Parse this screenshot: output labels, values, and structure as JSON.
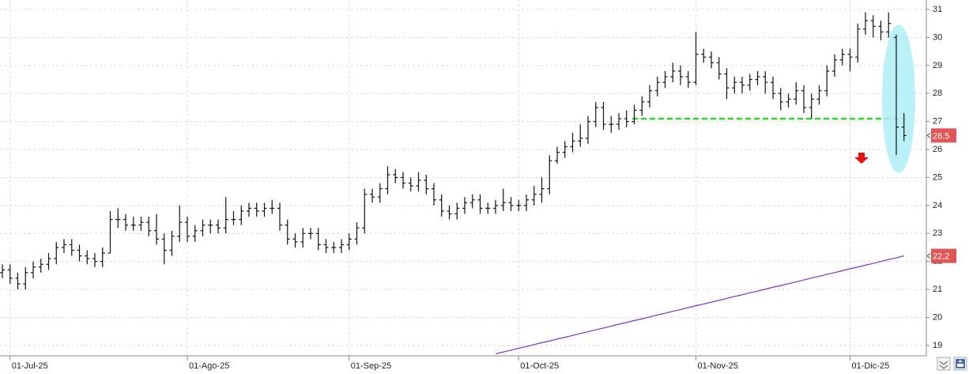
{
  "chart_data": {
    "type": "ohlc",
    "categories": [
      null,
      "01-Jul-25",
      null,
      null,
      null,
      null,
      null,
      null,
      null,
      null,
      null,
      null,
      null,
      null,
      null,
      null,
      null,
      null,
      null,
      null,
      null,
      null,
      null,
      null,
      "01-Ago-25",
      null,
      null,
      null,
      null,
      null,
      null,
      null,
      null,
      null,
      null,
      null,
      null,
      null,
      null,
      null,
      null,
      null,
      null,
      null,
      null,
      "01-Sep-25",
      null,
      null,
      null,
      null,
      null,
      null,
      null,
      null,
      null,
      null,
      null,
      null,
      null,
      null,
      null,
      null,
      null,
      null,
      null,
      null,
      null,
      "01-Oct-25",
      null,
      null,
      null,
      null,
      null,
      null,
      null,
      null,
      null,
      null,
      null,
      null,
      null,
      null,
      null,
      null,
      null,
      null,
      null,
      null,
      null,
      null,
      "01-Nov-25",
      null,
      null,
      null,
      null,
      null,
      null,
      null,
      null,
      null,
      null,
      null,
      null,
      null,
      null,
      null,
      null,
      null,
      null,
      null,
      "01-Dic-25",
      null,
      null,
      null,
      null,
      null,
      null,
      null
    ],
    "open": [
      21.6,
      21.7,
      21.4,
      21.2,
      21.6,
      21.8,
      21.9,
      22.1,
      22.5,
      22.6,
      22.4,
      22.2,
      22.1,
      22.0,
      22.3,
      23.5,
      23.5,
      23.3,
      23.3,
      23.4,
      23.1,
      22.8,
      22.4,
      22.9,
      23.4,
      22.9,
      23.1,
      23.3,
      23.3,
      23.2,
      23.5,
      23.5,
      23.8,
      23.9,
      23.8,
      23.9,
      23.9,
      23.3,
      22.8,
      22.7,
      23.0,
      23.0,
      22.6,
      22.5,
      22.5,
      22.6,
      22.8,
      23.2,
      24.4,
      24.3,
      24.6,
      25.1,
      25.0,
      24.8,
      24.7,
      24.9,
      24.6,
      24.2,
      23.8,
      23.7,
      23.9,
      24.1,
      24.2,
      23.9,
      23.9,
      24.0,
      24.1,
      24.0,
      24.0,
      24.2,
      24.4,
      24.6,
      25.6,
      25.9,
      26.1,
      26.3,
      26.4,
      27.0,
      27.5,
      26.9,
      26.9,
      27.1,
      27.0,
      27.4,
      27.7,
      28.1,
      28.4,
      28.6,
      28.8,
      28.6,
      28.4,
      29.4,
      29.3,
      29.1,
      28.7,
      28.2,
      28.4,
      28.3,
      28.5,
      28.6,
      28.4,
      28.0,
      27.7,
      27.8,
      28.1,
      27.5,
      27.8,
      28.1,
      28.8,
      29.2,
      29.4,
      29.3,
      30.3,
      30.6,
      30.4,
      30.2,
      30.0,
      26.8
    ],
    "high": [
      21.9,
      21.9,
      21.6,
      21.8,
      22.0,
      22.1,
      22.3,
      22.7,
      22.8,
      22.8,
      22.6,
      22.4,
      22.3,
      22.5,
      23.8,
      23.9,
      23.7,
      23.6,
      23.6,
      23.6,
      23.7,
      23.0,
      23.1,
      24.0,
      23.6,
      23.3,
      23.5,
      23.5,
      23.5,
      24.3,
      23.8,
      24.0,
      24.1,
      24.1,
      24.1,
      24.2,
      24.1,
      23.5,
      23.0,
      23.2,
      23.2,
      23.2,
      22.8,
      22.7,
      22.8,
      23.0,
      23.4,
      24.6,
      24.6,
      24.8,
      25.4,
      25.3,
      25.2,
      25.0,
      25.2,
      25.1,
      24.8,
      24.4,
      24.0,
      24.1,
      24.3,
      24.4,
      24.4,
      24.1,
      24.2,
      24.6,
      24.3,
      24.2,
      24.4,
      24.7,
      25.0,
      25.8,
      26.1,
      26.3,
      26.6,
      26.9,
      27.2,
      27.7,
      27.7,
      27.2,
      27.3,
      27.4,
      27.6,
      27.9,
      28.3,
      28.6,
      28.8,
      29.1,
      29.0,
      28.8,
      30.2,
      29.6,
      29.5,
      29.3,
      28.9,
      28.6,
      28.6,
      28.7,
      28.8,
      28.8,
      28.6,
      28.2,
      28.0,
      28.4,
      28.3,
      28.0,
      28.3,
      29.0,
      29.4,
      29.6,
      29.6,
      30.5,
      30.9,
      30.8,
      30.6,
      30.9,
      30.1,
      27.3
    ],
    "low": [
      21.4,
      21.2,
      21.0,
      21.0,
      21.4,
      21.6,
      21.7,
      21.9,
      22.3,
      22.2,
      22.0,
      21.9,
      21.8,
      21.8,
      22.3,
      23.2,
      23.1,
      23.1,
      23.1,
      22.9,
      22.6,
      21.9,
      22.2,
      22.7,
      22.7,
      22.7,
      22.9,
      23.0,
      23.0,
      23.0,
      23.3,
      23.3,
      23.6,
      23.6,
      23.6,
      23.7,
      23.1,
      22.6,
      22.5,
      22.5,
      22.8,
      22.4,
      22.3,
      22.3,
      22.3,
      22.4,
      22.6,
      23.0,
      24.1,
      24.1,
      24.4,
      24.8,
      24.6,
      24.5,
      24.5,
      24.4,
      24.0,
      23.6,
      23.5,
      23.5,
      23.7,
      23.9,
      23.7,
      23.7,
      23.7,
      23.8,
      23.8,
      23.8,
      23.8,
      24.0,
      24.1,
      24.4,
      25.5,
      25.7,
      25.9,
      26.1,
      26.2,
      26.8,
      26.7,
      26.6,
      26.7,
      26.8,
      26.9,
      27.2,
      27.5,
      27.9,
      28.2,
      28.4,
      28.3,
      28.2,
      28.3,
      29.1,
      28.9,
      28.5,
      27.8,
      28.0,
      28.0,
      28.1,
      28.3,
      28.0,
      27.8,
      27.4,
      27.5,
      27.6,
      27.3,
      27.1,
      27.6,
      27.9,
      28.6,
      29.0,
      28.8,
      29.1,
      30.1,
      30.0,
      29.9,
      30.0,
      25.8,
      26.3
    ],
    "close": [
      21.7,
      21.4,
      21.2,
      21.6,
      21.8,
      21.9,
      22.1,
      22.5,
      22.6,
      22.4,
      22.2,
      22.1,
      22.0,
      22.3,
      23.5,
      23.5,
      23.3,
      23.3,
      23.4,
      23.1,
      22.8,
      22.4,
      22.9,
      23.4,
      22.9,
      23.1,
      23.3,
      23.3,
      23.2,
      23.5,
      23.5,
      23.8,
      23.9,
      23.8,
      23.9,
      23.9,
      23.3,
      22.8,
      22.7,
      23.0,
      23.0,
      22.6,
      22.5,
      22.5,
      22.6,
      22.8,
      23.2,
      24.4,
      24.3,
      24.6,
      25.1,
      25.0,
      24.8,
      24.7,
      24.9,
      24.6,
      24.2,
      23.8,
      23.7,
      23.9,
      24.1,
      24.2,
      23.9,
      23.9,
      24.0,
      24.1,
      24.0,
      24.0,
      24.2,
      24.4,
      24.6,
      25.6,
      25.9,
      26.1,
      26.3,
      26.4,
      27.0,
      27.5,
      26.9,
      26.9,
      27.1,
      27.0,
      27.4,
      27.7,
      28.1,
      28.4,
      28.6,
      28.8,
      28.6,
      28.4,
      29.4,
      29.3,
      29.1,
      28.7,
      28.2,
      28.4,
      28.3,
      28.5,
      28.6,
      28.4,
      28.0,
      27.7,
      27.8,
      28.1,
      27.5,
      27.8,
      28.1,
      28.8,
      29.2,
      29.4,
      29.3,
      30.3,
      30.6,
      30.4,
      30.2,
      30.5,
      26.8,
      26.5
    ],
    "color": "#111111",
    "moving_average": {
      "color": "#7b2fd0",
      "values": [
        null,
        null,
        null,
        null,
        null,
        null,
        null,
        null,
        null,
        null,
        null,
        null,
        null,
        null,
        null,
        null,
        null,
        null,
        null,
        null,
        null,
        null,
        null,
        null,
        null,
        null,
        null,
        null,
        null,
        null,
        null,
        null,
        null,
        null,
        null,
        null,
        null,
        null,
        null,
        null,
        null,
        null,
        null,
        null,
        null,
        null,
        null,
        null,
        null,
        null,
        null,
        null,
        null,
        null,
        null,
        null,
        null,
        null,
        null,
        null,
        null,
        null,
        null,
        null,
        18.7,
        18.77,
        18.83,
        18.9,
        18.96,
        19.03,
        19.1,
        19.16,
        19.23,
        19.29,
        19.36,
        19.43,
        19.49,
        19.56,
        19.62,
        19.69,
        19.76,
        19.82,
        19.89,
        19.95,
        20.02,
        20.09,
        20.15,
        20.22,
        20.28,
        20.35,
        20.42,
        20.48,
        20.55,
        20.61,
        20.68,
        20.75,
        20.81,
        20.88,
        20.94,
        21.01,
        21.08,
        21.14,
        21.21,
        21.27,
        21.34,
        21.41,
        21.47,
        21.54,
        21.6,
        21.67,
        21.74,
        21.8,
        21.87,
        21.93,
        22.0,
        22.07,
        22.13,
        22.2
      ]
    },
    "support_line": {
      "value": 27.1,
      "color": "#22dd22"
    },
    "price_tags": [
      {
        "value": 26.5,
        "label": "26,5",
        "color": "#e05555"
      },
      {
        "value": 22.2,
        "label": "22,2",
        "color": "#e05555"
      }
    ],
    "ylim": [
      18.63,
      31.34
    ],
    "yticks": [
      19,
      20,
      21,
      22,
      23,
      24,
      25,
      26,
      27,
      28,
      29,
      30,
      31
    ],
    "grid": true
  }
}
